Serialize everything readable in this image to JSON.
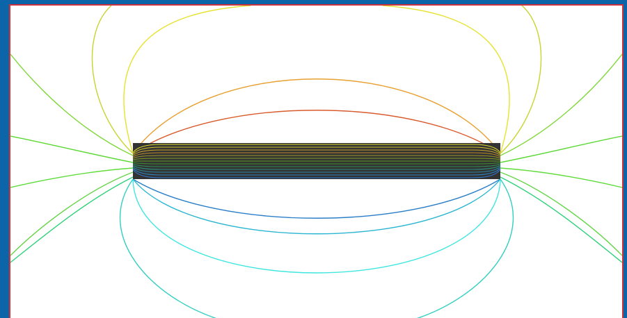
{
  "figure": {
    "background": "#0c65a8",
    "frame_border": "#d0303a",
    "canvas": "#ffffff",
    "magnet_fill": "#333333",
    "magnet_internal_colors": [
      "#e6e22e",
      "#d9c42c",
      "#c9a62a",
      "#b98a28",
      "#9d9a26",
      "#7d9e24",
      "#5a9a22",
      "#3e8f30",
      "#2e8a55",
      "#2b8a78",
      "#2b86a0",
      "#2b80c0",
      "#2f7ad5"
    ]
  },
  "field_lines": {
    "top": [
      {
        "level": 1,
        "color": "#d95a2b"
      },
      {
        "level": 2,
        "color": "#e8a030"
      },
      {
        "level": 3,
        "color": "#e6e22e"
      },
      {
        "level": 4,
        "color": "#c9d330"
      },
      {
        "level": 5,
        "color": "#7fd83a"
      }
    ],
    "bottom": [
      {
        "level": 1,
        "color": "#2a7ec8"
      },
      {
        "level": 2,
        "color": "#2ab5d0"
      },
      {
        "level": 3,
        "color": "#3ee6e0"
      },
      {
        "level": 4,
        "color": "#30cfc0"
      },
      {
        "level": 5,
        "color": "#2ed17a"
      }
    ],
    "side": [
      {
        "level": 1,
        "color": "#58d830"
      },
      {
        "level": 2,
        "color": "#5fdc3a"
      },
      {
        "level": 3,
        "color": "#69d54c"
      }
    ]
  }
}
